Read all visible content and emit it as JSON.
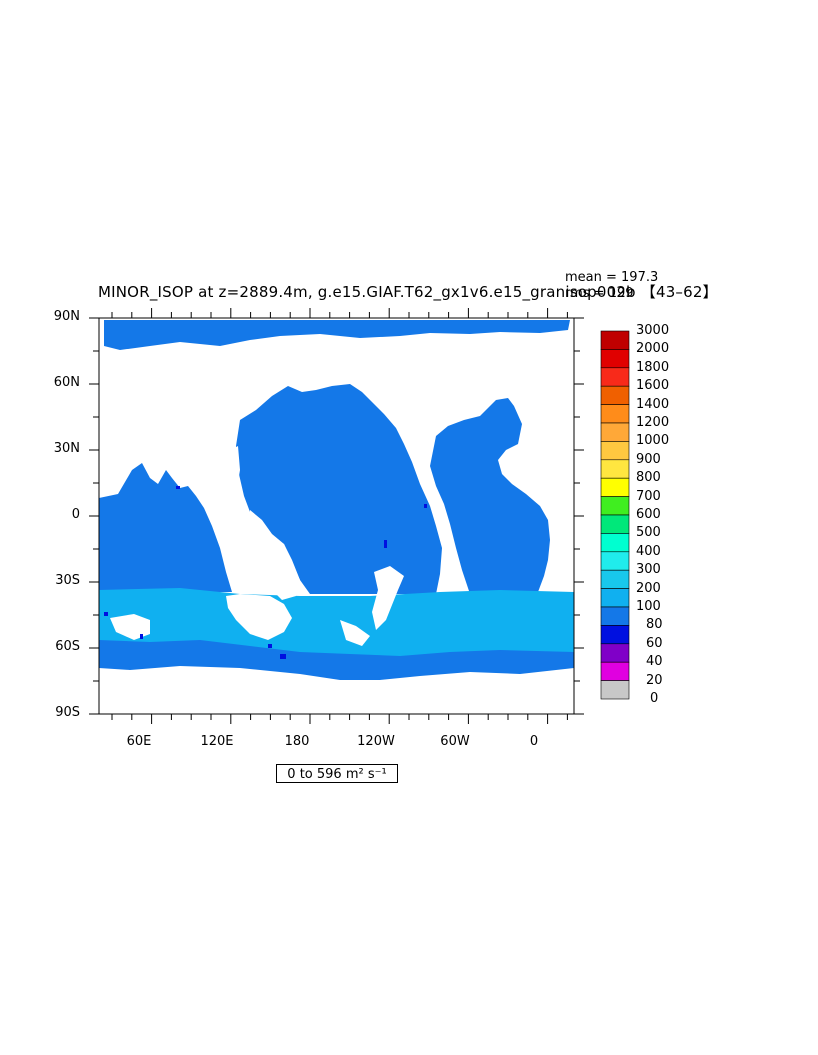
{
  "title": "MINOR_ISOP at z=2889.4m, g.e15.GIAF.T62_gx1v6.e15_granisop002b 【43–62】",
  "stats": {
    "mean": "mean = 197.3",
    "rms": "rms = 199"
  },
  "axes": {
    "y_ticks": [
      "90N",
      "60N",
      "30N",
      "0",
      "30S",
      "60S",
      "90S"
    ],
    "x_ticks": [
      "60E",
      "120E",
      "180",
      "120W",
      "60W",
      "0"
    ]
  },
  "colorbar": {
    "labels": [
      "3000",
      "2000",
      "1800",
      "1600",
      "1400",
      "1200",
      "1000",
      "900",
      "800",
      "700",
      "600",
      "500",
      "400",
      "300",
      "200",
      "100",
      "80",
      "60",
      "40",
      "20",
      "0"
    ],
    "colors": [
      "#c00000",
      "#e00000",
      "#f82a1a",
      "#f06000",
      "#ff8c1a",
      "#ffa838",
      "#ffc840",
      "#ffe640",
      "#ffff00",
      "#40ee20",
      "#00e87a",
      "#00ffd0",
      "#20ecec",
      "#18c8ec",
      "#10b0f0",
      "#1478e8",
      "#0010e0",
      "#8000c8",
      "#e000e0",
      "#c8c8c8",
      "#707070"
    ]
  },
  "range_label": "0 to 596 m² s⁻¹",
  "map_colors": {
    "ocean_upper": "#1478e8",
    "ocean_southern": "#10b0f0",
    "deep_spots": "#0010e0",
    "land": "#ffffff"
  }
}
